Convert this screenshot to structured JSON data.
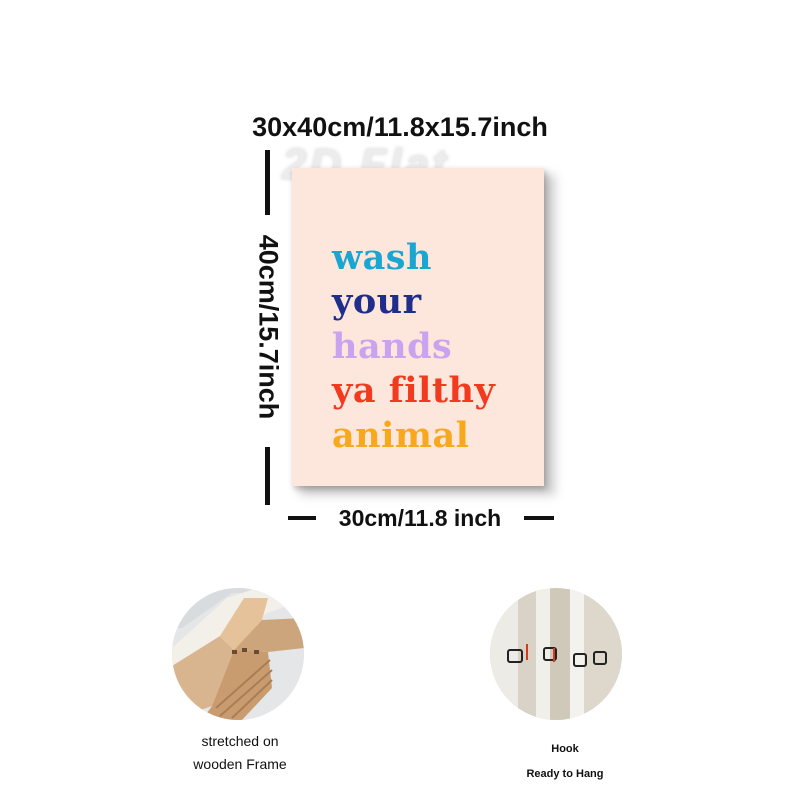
{
  "dimensions": {
    "top": "30x40cm/11.8x15.7inch",
    "left": "40cm/15.7inch",
    "bottom": "30cm/11.8 inch"
  },
  "watermark": "2D Flat",
  "poster": {
    "background": "#fde6dc",
    "lines": [
      {
        "text": "wash",
        "color": "#1aa6d0"
      },
      {
        "text": "your",
        "color": "#1f2e8c"
      },
      {
        "text": "hands",
        "color": "#c9a3f0"
      },
      {
        "text": "ya filthy",
        "color": "#f23a1e"
      },
      {
        "text": "animal",
        "color": "#f7a81b"
      }
    ]
  },
  "features": [
    {
      "icon": "wooden-frame-photo",
      "caption_lines": [
        "stretched on",
        "wooden Frame"
      ]
    },
    {
      "icon": "hook-photo",
      "caption_lines": [
        "Hook",
        "Ready to Hang"
      ]
    }
  ]
}
